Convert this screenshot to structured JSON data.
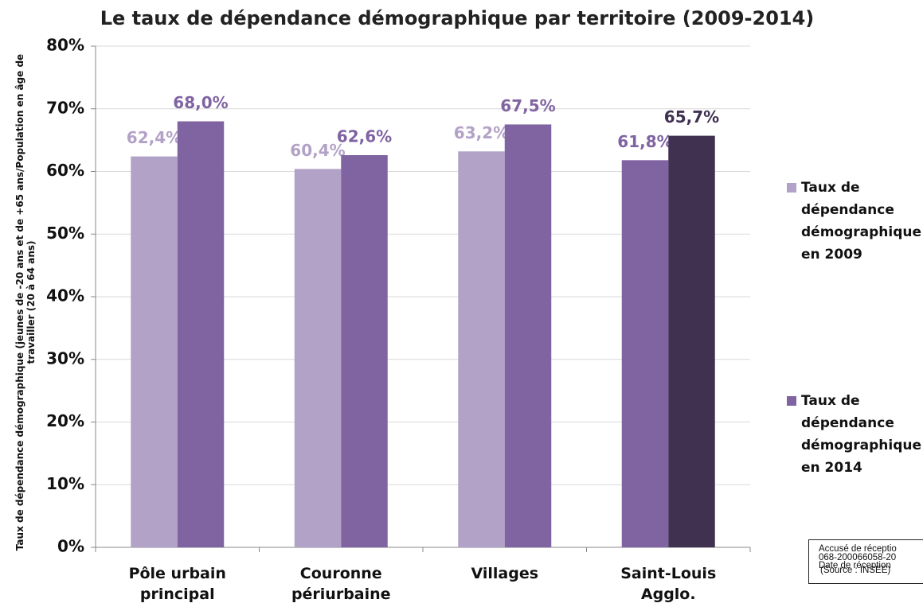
{
  "chart_data": {
    "type": "bar",
    "title": "Le taux de dépendance démographique par territoire (2009-2014)",
    "y_label": "Taux de dépendance démographique (jeunes de -20 ans et de +65 ans/Population en âge de travailler (20 à 64 ans)",
    "categories": [
      "Pôle urbain principal",
      "Couronne périurbaine",
      "Villages",
      "Saint-Louis Agglo."
    ],
    "series": [
      {
        "name": "Taux de dépendance démographique en 2009",
        "color": "#b3a2c7",
        "colors": [
          "#b3a2c7",
          "#b3a2c7",
          "#b3a2c7",
          "#8064a2"
        ],
        "values": [
          62.4,
          60.4,
          63.2,
          61.8
        ],
        "value_labels": [
          "62,4%",
          "60,4%",
          "63,2%",
          "61,8%"
        ]
      },
      {
        "name": "Taux de dépendance démographique en 2014",
        "color": "#8064a2",
        "colors": [
          "#8064a2",
          "#8064a2",
          "#8064a2",
          "#403151"
        ],
        "values": [
          68.0,
          62.6,
          67.5,
          65.7
        ],
        "value_labels": [
          "68,0%",
          "62,6%",
          "67,5%",
          "65,7%"
        ]
      }
    ],
    "ylim": [
      0,
      80
    ],
    "yticks": [
      {
        "value": 0,
        "label": "0%"
      },
      {
        "value": 10,
        "label": "10%"
      },
      {
        "value": 20,
        "label": "20%"
      },
      {
        "value": 30,
        "label": "30%"
      },
      {
        "value": 40,
        "label": "40%"
      },
      {
        "value": 50,
        "label": "50%"
      },
      {
        "value": 60,
        "label": "60%"
      },
      {
        "value": 70,
        "label": "70%"
      },
      {
        "value": 80,
        "label": "80%"
      }
    ],
    "grid": true,
    "legend": "right"
  },
  "stamp": {
    "lines": [
      "Accusé de réceptio",
      "068-200066058-20",
      "Date de réception",
      "(Source : INSEE)"
    ]
  }
}
